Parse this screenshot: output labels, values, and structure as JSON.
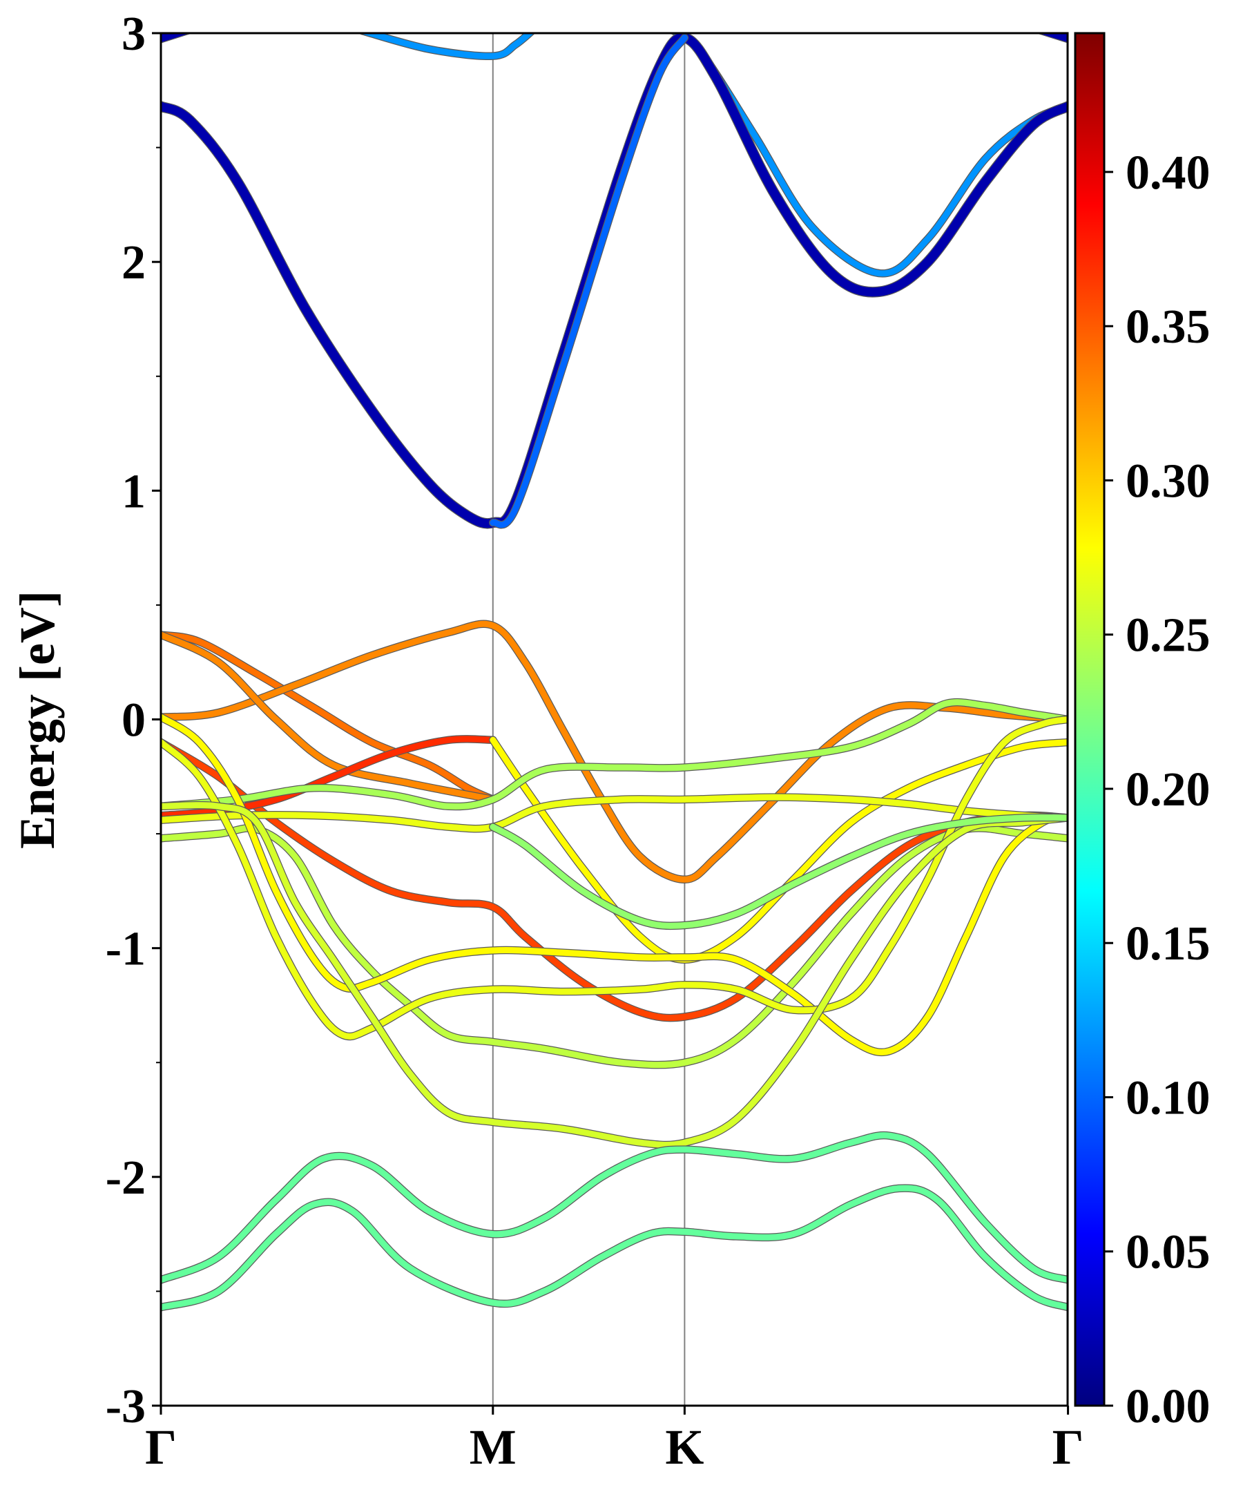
{
  "chart_data": {
    "type": "line",
    "title": "",
    "xlabel": "",
    "ylabel": "Energy [eV]",
    "ylim": [
      -3,
      3
    ],
    "xlim": [
      0,
      4.73
    ],
    "grid": false,
    "legend": "none",
    "x_ticks": [
      {
        "x": 0,
        "label": "Γ"
      },
      {
        "x": 1.732,
        "label": "M"
      },
      {
        "x": 2.732,
        "label": "K"
      },
      {
        "x": 4.732,
        "label": "Γ"
      }
    ],
    "y_ticks": [
      {
        "y": 3,
        "label": "3"
      },
      {
        "y": 2,
        "label": "2"
      },
      {
        "y": 1,
        "label": "1"
      },
      {
        "y": 0,
        "label": "0"
      },
      {
        "y": -1,
        "label": "-1"
      },
      {
        "y": -2,
        "label": "-2"
      },
      {
        "y": -3,
        "label": "-3"
      }
    ],
    "colorbar": {
      "colormap": "jet",
      "range": [
        0,
        0.445
      ],
      "ticks": [
        {
          "value": 0.0,
          "label": "0.00"
        },
        {
          "value": 0.05,
          "label": "0.05"
        },
        {
          "value": 0.1,
          "label": "0.10"
        },
        {
          "value": 0.15,
          "label": "0.15"
        },
        {
          "value": 0.2,
          "label": "0.20"
        },
        {
          "value": 0.25,
          "label": "0.25"
        },
        {
          "value": 0.3,
          "label": "0.30"
        },
        {
          "value": 0.35,
          "label": "0.35"
        },
        {
          "value": 0.4,
          "label": "0.40"
        }
      ]
    },
    "bands": [
      {
        "weight": 0.02,
        "points": [
          [
            0,
            2.98
          ],
          [
            0.15,
            3.02
          ]
        ]
      },
      {
        "weight": 0.02,
        "points": [
          [
            4.58,
            3.02
          ],
          [
            4.732,
            2.98
          ]
        ]
      },
      {
        "weight": 0.12,
        "points": [
          [
            1.05,
            3.01
          ],
          [
            1.4,
            2.93
          ],
          [
            1.732,
            2.9
          ],
          [
            1.85,
            2.95
          ],
          [
            1.95,
            3.02
          ]
        ]
      },
      {
        "weight": 0.12,
        "points": [
          [
            2.65,
            3.02
          ],
          [
            2.732,
            2.98
          ],
          [
            2.85,
            2.88
          ],
          [
            3.1,
            2.55
          ],
          [
            3.4,
            2.15
          ],
          [
            3.75,
            1.95
          ],
          [
            4.0,
            2.1
          ],
          [
            4.3,
            2.45
          ],
          [
            4.55,
            2.62
          ],
          [
            4.732,
            2.68
          ]
        ]
      },
      {
        "weight": 0.02,
        "points": [
          [
            0,
            2.68
          ],
          [
            0.15,
            2.62
          ],
          [
            0.4,
            2.35
          ],
          [
            0.75,
            1.8
          ],
          [
            1.1,
            1.35
          ],
          [
            1.4,
            1.03
          ],
          [
            1.6,
            0.89
          ],
          [
            1.732,
            0.86
          ],
          [
            1.85,
            0.95
          ],
          [
            2.1,
            1.6
          ],
          [
            2.4,
            2.4
          ],
          [
            2.6,
            2.85
          ],
          [
            2.732,
            2.98
          ],
          [
            2.9,
            2.8
          ],
          [
            3.2,
            2.3
          ],
          [
            3.5,
            1.95
          ],
          [
            3.75,
            1.87
          ],
          [
            4.0,
            2.0
          ],
          [
            4.3,
            2.35
          ],
          [
            4.55,
            2.6
          ],
          [
            4.732,
            2.68
          ]
        ]
      },
      {
        "weight": 0.1,
        "points": [
          [
            1.732,
            0.86
          ],
          [
            1.85,
            0.92
          ],
          [
            2.1,
            1.55
          ],
          [
            2.4,
            2.35
          ],
          [
            2.6,
            2.82
          ],
          [
            2.732,
            2.98
          ]
        ]
      },
      {
        "weight": 0.34,
        "points": [
          [
            0,
            0.37
          ],
          [
            0.2,
            0.34
          ],
          [
            0.5,
            0.2
          ],
          [
            0.8,
            0.05
          ],
          [
            1.1,
            -0.1
          ],
          [
            1.4,
            -0.2
          ],
          [
            1.6,
            -0.3
          ],
          [
            1.732,
            -0.35
          ]
        ]
      },
      {
        "weight": 0.33,
        "points": [
          [
            0,
            0.01
          ],
          [
            0.3,
            0.03
          ],
          [
            0.7,
            0.15
          ],
          [
            1.1,
            0.28
          ],
          [
            1.5,
            0.38
          ],
          [
            1.732,
            0.41
          ],
          [
            1.9,
            0.25
          ],
          [
            2.1,
            -0.05
          ],
          [
            2.3,
            -0.35
          ],
          [
            2.5,
            -0.6
          ],
          [
            2.732,
            -0.7
          ],
          [
            2.9,
            -0.6
          ],
          [
            3.2,
            -0.35
          ],
          [
            3.5,
            -0.1
          ],
          [
            3.8,
            0.05
          ],
          [
            4.1,
            0.05
          ],
          [
            4.4,
            0.02
          ],
          [
            4.732,
            0.0
          ]
        ]
      },
      {
        "weight": 0.33,
        "points": [
          [
            0,
            0.37
          ],
          [
            0.3,
            0.25
          ],
          [
            0.6,
            0.0
          ],
          [
            0.9,
            -0.2
          ],
          [
            1.3,
            -0.28
          ],
          [
            1.732,
            -0.35
          ]
        ]
      },
      {
        "weight": 0.36,
        "points": [
          [
            0,
            -0.1
          ],
          [
            0.3,
            -0.25
          ],
          [
            0.6,
            -0.45
          ],
          [
            0.9,
            -0.62
          ],
          [
            1.2,
            -0.75
          ],
          [
            1.5,
            -0.8
          ],
          [
            1.732,
            -0.82
          ],
          [
            1.9,
            -0.95
          ],
          [
            2.2,
            -1.15
          ],
          [
            2.5,
            -1.28
          ],
          [
            2.732,
            -1.3
          ],
          [
            3.0,
            -1.22
          ],
          [
            3.3,
            -1.0
          ],
          [
            3.6,
            -0.75
          ],
          [
            3.9,
            -0.55
          ],
          [
            4.2,
            -0.45
          ],
          [
            4.5,
            -0.42
          ],
          [
            4.732,
            -0.43
          ]
        ]
      },
      {
        "weight": 0.37,
        "points": [
          [
            0,
            -0.42
          ],
          [
            0.3,
            -0.4
          ],
          [
            0.6,
            -0.35
          ],
          [
            0.9,
            -0.25
          ],
          [
            1.2,
            -0.15
          ],
          [
            1.5,
            -0.09
          ],
          [
            1.732,
            -0.09
          ]
        ]
      },
      {
        "weight": 0.28,
        "points": [
          [
            1.732,
            -0.09
          ],
          [
            1.9,
            -0.3
          ],
          [
            2.2,
            -0.65
          ],
          [
            2.5,
            -0.95
          ],
          [
            2.732,
            -1.05
          ],
          [
            3.0,
            -0.95
          ],
          [
            3.3,
            -0.7
          ],
          [
            3.6,
            -0.45
          ],
          [
            3.9,
            -0.3
          ],
          [
            4.2,
            -0.2
          ],
          [
            4.5,
            -0.12
          ],
          [
            4.732,
            -0.1
          ]
        ]
      },
      {
        "weight": 0.24,
        "points": [
          [
            0,
            -0.38
          ],
          [
            0.4,
            -0.35
          ],
          [
            0.8,
            -0.3
          ],
          [
            1.2,
            -0.33
          ],
          [
            1.5,
            -0.38
          ],
          [
            1.732,
            -0.35
          ],
          [
            2.0,
            -0.22
          ],
          [
            2.4,
            -0.21
          ],
          [
            2.732,
            -0.21
          ],
          [
            3.2,
            -0.17
          ],
          [
            3.6,
            -0.12
          ],
          [
            3.9,
            -0.02
          ],
          [
            4.1,
            0.07
          ],
          [
            4.3,
            0.06
          ],
          [
            4.5,
            0.03
          ],
          [
            4.732,
            0.0
          ]
        ]
      },
      {
        "weight": 0.27,
        "points": [
          [
            0,
            -0.44
          ],
          [
            0.4,
            -0.42
          ],
          [
            0.8,
            -0.42
          ],
          [
            1.2,
            -0.44
          ],
          [
            1.5,
            -0.47
          ],
          [
            1.732,
            -0.47
          ],
          [
            2.0,
            -0.38
          ],
          [
            2.4,
            -0.35
          ],
          [
            2.732,
            -0.35
          ],
          [
            3.2,
            -0.34
          ],
          [
            3.6,
            -0.35
          ],
          [
            3.9,
            -0.37
          ],
          [
            4.2,
            -0.4
          ],
          [
            4.5,
            -0.42
          ],
          [
            4.732,
            -0.43
          ]
        ]
      },
      {
        "weight": 0.25,
        "points": [
          [
            0,
            -0.52
          ],
          [
            0.3,
            -0.5
          ],
          [
            0.5,
            -0.48
          ],
          [
            0.7,
            -0.6
          ],
          [
            0.9,
            -0.9
          ],
          [
            1.1,
            -1.1
          ],
          [
            1.3,
            -1.25
          ],
          [
            1.5,
            -1.38
          ],
          [
            1.732,
            -1.41
          ],
          [
            2.0,
            -1.44
          ],
          [
            2.4,
            -1.5
          ],
          [
            2.732,
            -1.5
          ],
          [
            3.0,
            -1.4
          ],
          [
            3.3,
            -1.15
          ],
          [
            3.6,
            -0.85
          ],
          [
            3.9,
            -0.6
          ],
          [
            4.2,
            -0.48
          ],
          [
            4.5,
            -0.5
          ],
          [
            4.732,
            -0.52
          ]
        ]
      },
      {
        "weight": 0.28,
        "points": [
          [
            0,
            0.01
          ],
          [
            0.2,
            -0.1
          ],
          [
            0.4,
            -0.35
          ],
          [
            0.6,
            -0.75
          ],
          [
            0.8,
            -1.05
          ],
          [
            0.95,
            -1.17
          ],
          [
            1.1,
            -1.15
          ],
          [
            1.4,
            -1.05
          ],
          [
            1.732,
            -1.01
          ],
          [
            2.1,
            -1.02
          ],
          [
            2.5,
            -1.04
          ],
          [
            2.732,
            -1.04
          ],
          [
            3.0,
            -1.05
          ],
          [
            3.3,
            -1.2
          ],
          [
            3.6,
            -1.4
          ],
          [
            3.8,
            -1.45
          ],
          [
            4.0,
            -1.3
          ],
          [
            4.2,
            -0.95
          ],
          [
            4.4,
            -0.6
          ],
          [
            4.6,
            -0.45
          ],
          [
            4.732,
            -0.43
          ]
        ]
      },
      {
        "weight": 0.27,
        "points": [
          [
            0,
            -0.1
          ],
          [
            0.2,
            -0.25
          ],
          [
            0.4,
            -0.55
          ],
          [
            0.6,
            -0.95
          ],
          [
            0.8,
            -1.25
          ],
          [
            0.95,
            -1.38
          ],
          [
            1.1,
            -1.35
          ],
          [
            1.4,
            -1.22
          ],
          [
            1.732,
            -1.18
          ],
          [
            2.1,
            -1.19
          ],
          [
            2.5,
            -1.18
          ],
          [
            2.732,
            -1.16
          ],
          [
            3.0,
            -1.18
          ],
          [
            3.3,
            -1.27
          ],
          [
            3.6,
            -1.22
          ],
          [
            3.8,
            -1.0
          ],
          [
            4.0,
            -0.7
          ],
          [
            4.2,
            -0.35
          ],
          [
            4.4,
            -0.1
          ],
          [
            4.6,
            -0.02
          ],
          [
            4.732,
            0.0
          ]
        ]
      },
      {
        "weight": 0.26,
        "points": [
          [
            0,
            -0.38
          ],
          [
            0.3,
            -0.38
          ],
          [
            0.5,
            -0.45
          ],
          [
            0.7,
            -0.8
          ],
          [
            0.9,
            -1.05
          ],
          [
            1.1,
            -1.3
          ],
          [
            1.3,
            -1.55
          ],
          [
            1.5,
            -1.72
          ],
          [
            1.732,
            -1.76
          ],
          [
            2.1,
            -1.79
          ],
          [
            2.5,
            -1.85
          ],
          [
            2.732,
            -1.85
          ],
          [
            3.0,
            -1.75
          ],
          [
            3.3,
            -1.45
          ],
          [
            3.6,
            -1.05
          ],
          [
            3.9,
            -0.7
          ],
          [
            4.2,
            -0.48
          ],
          [
            4.5,
            -0.45
          ],
          [
            4.732,
            -0.43
          ]
        ]
      },
      {
        "weight": 0.23,
        "points": [
          [
            1.732,
            -0.47
          ],
          [
            1.9,
            -0.55
          ],
          [
            2.2,
            -0.75
          ],
          [
            2.5,
            -0.88
          ],
          [
            2.732,
            -0.9
          ],
          [
            3.0,
            -0.85
          ],
          [
            3.3,
            -0.72
          ],
          [
            3.6,
            -0.6
          ],
          [
            3.9,
            -0.5
          ],
          [
            4.2,
            -0.45
          ],
          [
            4.5,
            -0.43
          ],
          [
            4.732,
            -0.43
          ]
        ]
      },
      {
        "weight": 0.21,
        "points": [
          [
            0,
            -2.45
          ],
          [
            0.3,
            -2.35
          ],
          [
            0.6,
            -2.1
          ],
          [
            0.85,
            -1.92
          ],
          [
            1.1,
            -1.95
          ],
          [
            1.4,
            -2.15
          ],
          [
            1.732,
            -2.25
          ],
          [
            2.0,
            -2.18
          ],
          [
            2.3,
            -2.0
          ],
          [
            2.55,
            -1.9
          ],
          [
            2.732,
            -1.88
          ],
          [
            3.0,
            -1.9
          ],
          [
            3.3,
            -1.92
          ],
          [
            3.6,
            -1.85
          ],
          [
            3.8,
            -1.82
          ],
          [
            4.0,
            -1.9
          ],
          [
            4.3,
            -2.2
          ],
          [
            4.55,
            -2.4
          ],
          [
            4.732,
            -2.45
          ]
        ]
      },
      {
        "weight": 0.21,
        "points": [
          [
            0,
            -2.57
          ],
          [
            0.3,
            -2.5
          ],
          [
            0.6,
            -2.25
          ],
          [
            0.8,
            -2.12
          ],
          [
            1.0,
            -2.15
          ],
          [
            1.3,
            -2.4
          ],
          [
            1.732,
            -2.55
          ],
          [
            2.0,
            -2.5
          ],
          [
            2.3,
            -2.35
          ],
          [
            2.55,
            -2.25
          ],
          [
            2.732,
            -2.24
          ],
          [
            3.0,
            -2.26
          ],
          [
            3.3,
            -2.25
          ],
          [
            3.6,
            -2.12
          ],
          [
            3.85,
            -2.05
          ],
          [
            4.05,
            -2.1
          ],
          [
            4.3,
            -2.35
          ],
          [
            4.55,
            -2.52
          ],
          [
            4.732,
            -2.57
          ]
        ]
      }
    ]
  }
}
